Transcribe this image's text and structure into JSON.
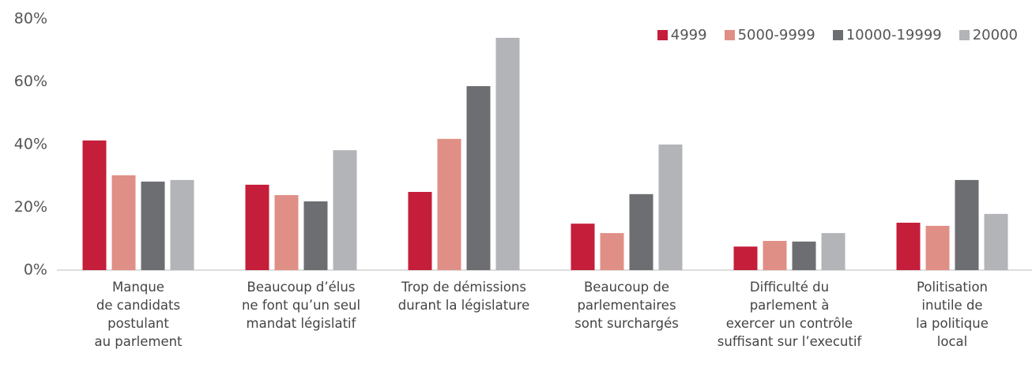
{
  "chart_data": {
    "type": "bar",
    "categories": [
      "Manque\nde candidats\npostulant\nau parlement",
      "Beaucoup d’élus\nne font qu’un seul\nmandat législatif",
      "Trop de démissions\ndurant la législature",
      "Beaucoup de\nparlementaires\nsont surchargés",
      "Difficulté du\nparlement à\nexercer un contrôle\nsuffisant sur l’executif",
      "Politisation\ninutile de\nla politique\nlocal"
    ],
    "series": [
      {
        "name": "4999",
        "color": "#c41e3a",
        "values": [
          41.3,
          27.2,
          24.9,
          14.8,
          7.5,
          15.1
        ]
      },
      {
        "name": "5000-9999",
        "color": "#e08f86",
        "values": [
          30.2,
          23.9,
          41.8,
          11.8,
          9.3,
          14.1
        ]
      },
      {
        "name": "10000-19999",
        "color": "#6d6e71",
        "values": [
          28.2,
          21.9,
          58.6,
          24.2,
          9.1,
          28.7
        ]
      },
      {
        "name": "20000",
        "color": "#b3b4b8",
        "values": [
          28.7,
          38.2,
          74.0,
          40.0,
          11.8,
          17.9
        ]
      }
    ],
    "ylim": [
      0,
      80
    ],
    "yticks": [
      {
        "value": 0,
        "label": "0%"
      },
      {
        "value": 20,
        "label": "20%"
      },
      {
        "value": 40,
        "label": "40%"
      },
      {
        "value": 60,
        "label": "60%"
      },
      {
        "value": 80,
        "label": "80%"
      }
    ],
    "legend": "top-right"
  }
}
